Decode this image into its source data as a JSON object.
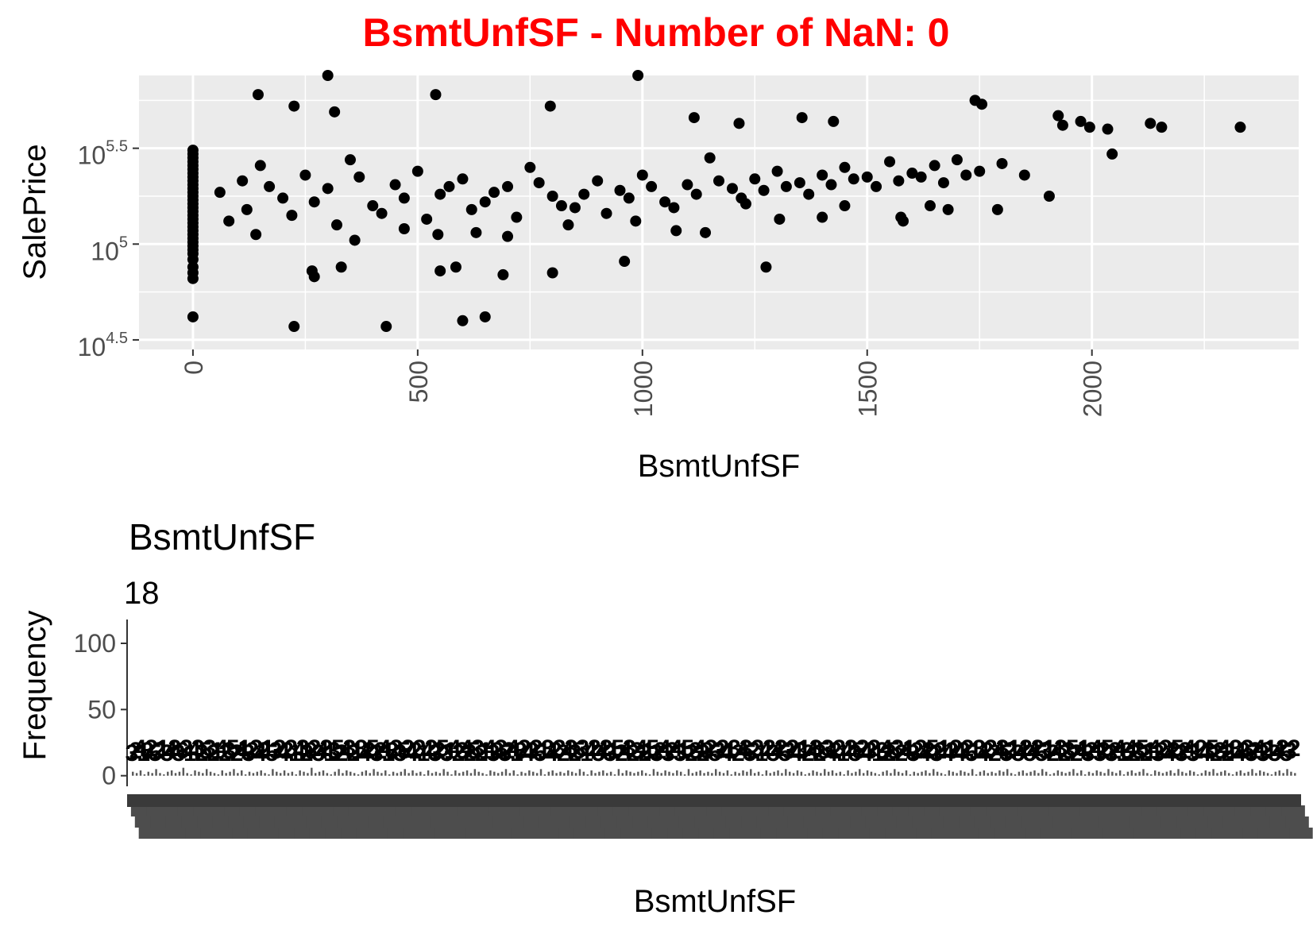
{
  "figure": {
    "title": "BsmtUnfSF - Number of NaN: 0",
    "title_color": "#FF0000"
  },
  "chart_data": [
    {
      "type": "scatter",
      "title": "",
      "xlabel": "BsmtUnfSF",
      "ylabel": "SalePrice",
      "x_ticks": [
        "0",
        "500",
        "1000",
        "1500",
        "2000"
      ],
      "x_tick_values": [
        0,
        500,
        1000,
        1500,
        2000
      ],
      "y_scale": "log10",
      "y_ticks": [
        {
          "base": "10",
          "exp": "4.5",
          "value": 31623
        },
        {
          "base": "10",
          "exp": "5",
          "value": 100000
        },
        {
          "base": "10",
          "exp": "5.5",
          "value": 316228
        }
      ],
      "xlim": [
        -120,
        2460
      ],
      "ylim_log10": [
        4.45,
        5.88
      ],
      "panel_background": "#EBEBEB",
      "grid": true,
      "point_color": "#000000",
      "points": [
        [
          0,
          4.62
        ],
        [
          0,
          4.82
        ],
        [
          0,
          4.85
        ],
        [
          0,
          4.88
        ],
        [
          0,
          4.92
        ],
        [
          0,
          4.95
        ],
        [
          0,
          4.97
        ],
        [
          0,
          4.99
        ],
        [
          0,
          5.01
        ],
        [
          0,
          5.03
        ],
        [
          0,
          5.05
        ],
        [
          0,
          5.07
        ],
        [
          0,
          5.09
        ],
        [
          0,
          5.11
        ],
        [
          0,
          5.13
        ],
        [
          0,
          5.15
        ],
        [
          0,
          5.17
        ],
        [
          0,
          5.19
        ],
        [
          0,
          5.21
        ],
        [
          0,
          5.23
        ],
        [
          0,
          5.25
        ],
        [
          0,
          5.27
        ],
        [
          0,
          5.29
        ],
        [
          0,
          5.31
        ],
        [
          0,
          5.33
        ],
        [
          0,
          5.35
        ],
        [
          0,
          5.37
        ],
        [
          0,
          5.39
        ],
        [
          0,
          5.41
        ],
        [
          0,
          5.43
        ],
        [
          0,
          5.45
        ],
        [
          0,
          5.47
        ],
        [
          0,
          5.49
        ],
        [
          225,
          4.57
        ],
        [
          430,
          4.57
        ],
        [
          600,
          4.6
        ],
        [
          650,
          4.62
        ],
        [
          265,
          4.86
        ],
        [
          270,
          4.83
        ],
        [
          330,
          4.88
        ],
        [
          1275,
          4.88
        ],
        [
          960,
          4.91
        ],
        [
          800,
          4.85
        ],
        [
          550,
          4.86
        ],
        [
          690,
          4.84
        ],
        [
          585,
          4.88
        ],
        [
          300,
          5.88
        ],
        [
          990,
          5.88
        ],
        [
          145,
          5.78
        ],
        [
          540,
          5.78
        ],
        [
          225,
          5.72
        ],
        [
          315,
          5.69
        ],
        [
          795,
          5.72
        ],
        [
          1740,
          5.75
        ],
        [
          1755,
          5.73
        ],
        [
          1925,
          5.67
        ],
        [
          1975,
          5.64
        ],
        [
          2130,
          5.63
        ],
        [
          2155,
          5.61
        ],
        [
          2330,
          5.61
        ],
        [
          1995,
          5.61
        ],
        [
          2035,
          5.6
        ],
        [
          1115,
          5.66
        ],
        [
          1215,
          5.63
        ],
        [
          1355,
          5.66
        ],
        [
          1425,
          5.64
        ],
        [
          1935,
          5.62
        ],
        [
          2045,
          5.47
        ],
        [
          60,
          5.27
        ],
        [
          110,
          5.33
        ],
        [
          150,
          5.41
        ],
        [
          200,
          5.24
        ],
        [
          250,
          5.36
        ],
        [
          300,
          5.29
        ],
        [
          350,
          5.44
        ],
        [
          400,
          5.2
        ],
        [
          450,
          5.31
        ],
        [
          500,
          5.38
        ],
        [
          550,
          5.26
        ],
        [
          600,
          5.34
        ],
        [
          650,
          5.22
        ],
        [
          700,
          5.3
        ],
        [
          750,
          5.4
        ],
        [
          800,
          5.25
        ],
        [
          850,
          5.19
        ],
        [
          900,
          5.33
        ],
        [
          950,
          5.28
        ],
        [
          1000,
          5.36
        ],
        [
          1050,
          5.22
        ],
        [
          1100,
          5.31
        ],
        [
          1150,
          5.45
        ],
        [
          1200,
          5.29
        ],
        [
          1250,
          5.34
        ],
        [
          1300,
          5.38
        ],
        [
          1350,
          5.32
        ],
        [
          1400,
          5.36
        ],
        [
          1450,
          5.4
        ],
        [
          1500,
          5.35
        ],
        [
          1550,
          5.43
        ],
        [
          1600,
          5.37
        ],
        [
          1650,
          5.41
        ],
        [
          1700,
          5.44
        ],
        [
          1750,
          5.38
        ],
        [
          1800,
          5.42
        ],
        [
          1850,
          5.36
        ],
        [
          1905,
          5.25
        ],
        [
          1790,
          5.18
        ],
        [
          1580,
          5.12
        ],
        [
          1575,
          5.14
        ],
        [
          1680,
          5.18
        ],
        [
          1640,
          5.2
        ],
        [
          1450,
          5.2
        ],
        [
          1400,
          5.14
        ],
        [
          1305,
          5.13
        ],
        [
          1230,
          5.21
        ],
        [
          1140,
          5.06
        ],
        [
          1075,
          5.07
        ],
        [
          985,
          5.12
        ],
        [
          835,
          5.1
        ],
        [
          700,
          5.04
        ],
        [
          630,
          5.06
        ],
        [
          545,
          5.05
        ],
        [
          470,
          5.08
        ],
        [
          360,
          5.02
        ],
        [
          140,
          5.05
        ],
        [
          80,
          5.12
        ],
        [
          120,
          5.18
        ],
        [
          170,
          5.3
        ],
        [
          220,
          5.15
        ],
        [
          270,
          5.22
        ],
        [
          320,
          5.1
        ],
        [
          370,
          5.35
        ],
        [
          420,
          5.16
        ],
        [
          470,
          5.24
        ],
        [
          520,
          5.13
        ],
        [
          570,
          5.3
        ],
        [
          620,
          5.18
        ],
        [
          670,
          5.27
        ],
        [
          720,
          5.14
        ],
        [
          770,
          5.32
        ],
        [
          820,
          5.2
        ],
        [
          870,
          5.26
        ],
        [
          920,
          5.16
        ],
        [
          970,
          5.24
        ],
        [
          1020,
          5.3
        ],
        [
          1070,
          5.19
        ],
        [
          1120,
          5.26
        ],
        [
          1170,
          5.33
        ],
        [
          1220,
          5.24
        ],
        [
          1270,
          5.28
        ],
        [
          1320,
          5.3
        ],
        [
          1370,
          5.26
        ],
        [
          1420,
          5.31
        ],
        [
          1470,
          5.34
        ],
        [
          1520,
          5.3
        ],
        [
          1570,
          5.33
        ],
        [
          1620,
          5.35
        ],
        [
          1670,
          5.32
        ],
        [
          1720,
          5.36
        ]
      ]
    },
    {
      "type": "bar",
      "title": "BsmtUnfSF",
      "max_label": "18",
      "xlabel": "BsmtUnfSF",
      "ylabel": "Frequency",
      "y_ticks": [
        "0",
        "50",
        "100"
      ],
      "y_tick_values": [
        0,
        50,
        100
      ],
      "ylim": [
        -8,
        118
      ],
      "bar_color": "#595959",
      "label_color": "#000000",
      "values": [
        3,
        2,
        4,
        1,
        3,
        2,
        5,
        2,
        1,
        3,
        4,
        2,
        3,
        6,
        2,
        1,
        4,
        3,
        2,
        5,
        3,
        2,
        1,
        4,
        2,
        3,
        5,
        2,
        4,
        1,
        3,
        2,
        3,
        4,
        2,
        1,
        5,
        3,
        2,
        4,
        2,
        3,
        1,
        4,
        3,
        2,
        6,
        2,
        3,
        4,
        2,
        1,
        3,
        5,
        2,
        4,
        3,
        2,
        1,
        3,
        4,
        2,
        5,
        3,
        2,
        4,
        1,
        3,
        2,
        3,
        5,
        2,
        4,
        2,
        3,
        1,
        4,
        2,
        3,
        2,
        5,
        3,
        1,
        4,
        2,
        3,
        4,
        2,
        5,
        3,
        2,
        1,
        4,
        3,
        2,
        3,
        5,
        2,
        4,
        1,
        3,
        2,
        4,
        3,
        2,
        5,
        1,
        3,
        4,
        2,
        3,
        2,
        4,
        3,
        2,
        5,
        3,
        1,
        4,
        2,
        3,
        4,
        2,
        3,
        1,
        5,
        2,
        4,
        3,
        2,
        3,
        4,
        2,
        1,
        5,
        3,
        2,
        4,
        3,
        2,
        4,
        3,
        1,
        5,
        2,
        3,
        4,
        2,
        3,
        2,
        5,
        3,
        2,
        4,
        1,
        3,
        2,
        4,
        3,
        5,
        2,
        3,
        1,
        4,
        2,
        3,
        4,
        2,
        5,
        3,
        2,
        4,
        3,
        1,
        2,
        4,
        3,
        2,
        5,
        3,
        4,
        2,
        3,
        1,
        4,
        2,
        3,
        5,
        2,
        4,
        3,
        2,
        1,
        3,
        4,
        2,
        5,
        3,
        2,
        4,
        1,
        3,
        2,
        3,
        4,
        2,
        5,
        3,
        2,
        1,
        4,
        3,
        2,
        4,
        3,
        2,
        5,
        1,
        3,
        4,
        2,
        3,
        2,
        4,
        3,
        5,
        2,
        1,
        3,
        4,
        2,
        3,
        4,
        2,
        5,
        3,
        1,
        2,
        4,
        3,
        2,
        3,
        5,
        2,
        4,
        1,
        3,
        2,
        4,
        3,
        2,
        5,
        3,
        2,
        4,
        1,
        3,
        4,
        2,
        3,
        5,
        2,
        1,
        4,
        3,
        2,
        3,
        4,
        2,
        5,
        3,
        2,
        4,
        3,
        1,
        2,
        4,
        3,
        5,
        2,
        3,
        4,
        2,
        1,
        3,
        4,
        2,
        3,
        5,
        2,
        4,
        3,
        2,
        1,
        3,
        4,
        2,
        5,
        3,
        2
      ]
    }
  ]
}
